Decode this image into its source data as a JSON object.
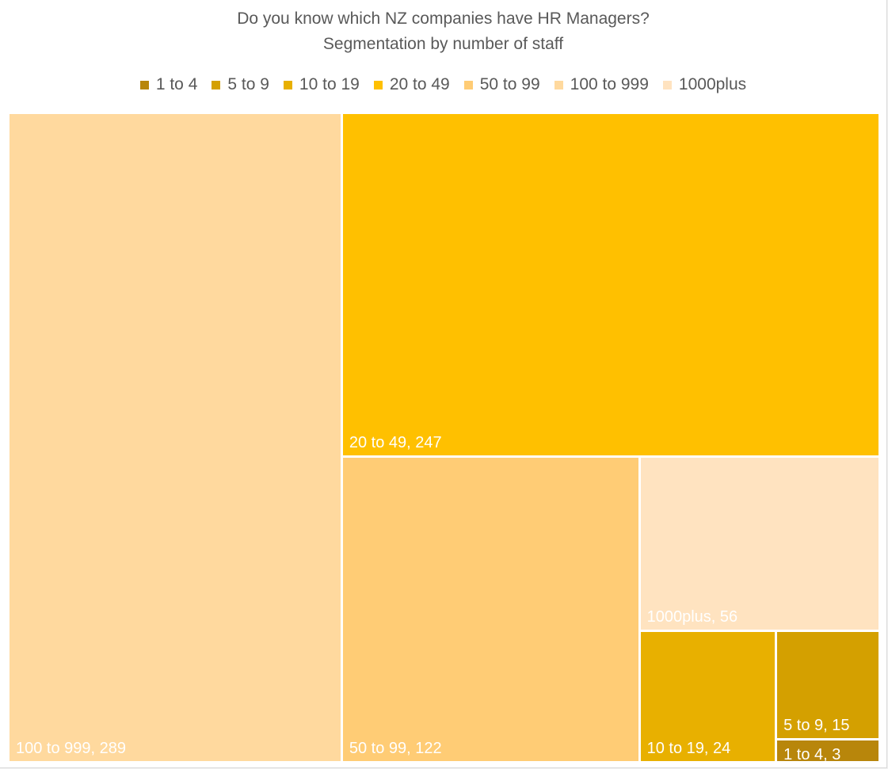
{
  "chart_data": {
    "type": "treemap",
    "title": "Do you know which NZ companies have HR Managers?",
    "subtitle": "Segmentation by number of staff",
    "legend_position": "top",
    "categories": [
      "1 to 4",
      "5 to 9",
      "10 to 19",
      "20 to 49",
      "50 to 99",
      "100 to 999",
      "1000plus"
    ],
    "values": [
      3,
      15,
      24,
      247,
      122,
      289,
      56
    ],
    "colors": [
      "#b8860b",
      "#d4a000",
      "#e8b000",
      "#ffc000",
      "#ffcc75",
      "#ffd99e",
      "#ffe3c0"
    ],
    "labels": [
      "1 to 4, 3",
      "5 to 9, 15",
      "10 to 19, 24",
      "20 to 49, 247",
      "50 to 99, 122",
      "100 to 999, 289",
      "1000plus, 56"
    ],
    "label_color": "#ffffff"
  },
  "legend": [
    {
      "label": "1 to 4",
      "color": "#b8860b"
    },
    {
      "label": "5 to 9",
      "color": "#d4a000"
    },
    {
      "label": "10 to 19",
      "color": "#e8b000"
    },
    {
      "label": "20 to 49",
      "color": "#ffc000"
    },
    {
      "label": "50 to 99",
      "color": "#ffcc75"
    },
    {
      "label": "100 to 999",
      "color": "#ffd99e"
    },
    {
      "label": "1000plus",
      "color": "#ffe3c0"
    }
  ]
}
